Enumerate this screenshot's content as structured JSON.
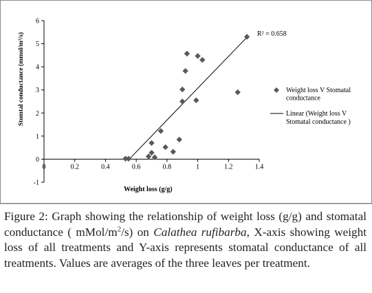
{
  "chart_data": {
    "type": "scatter",
    "xlabel": "Weight loss (g/g)",
    "ylabel": "Stomtal conductance (mmol/m²/s)",
    "xlim": [
      0,
      1.4
    ],
    "ylim": [
      -1,
      6
    ],
    "x_ticks": [
      "0",
      "0.2",
      "0.4",
      "0.6",
      "0.8",
      "1",
      "1.2",
      "1.4"
    ],
    "x_tick_values": [
      0,
      0.2,
      0.4,
      0.6,
      0.8,
      1.0,
      1.2,
      1.4
    ],
    "y_ticks": [
      "-1",
      "0",
      "1",
      "2",
      "3",
      "4",
      "5",
      "6"
    ],
    "y_tick_values": [
      -1,
      0,
      1,
      2,
      3,
      4,
      5,
      6
    ],
    "grid": false,
    "legend_position": "right",
    "marker_color": "#595959",
    "line_color": "#000000",
    "series": [
      {
        "name": "Weight loss V Stomatal conductance",
        "kind": "scatter",
        "marker": "diamond",
        "x": [
          0.53,
          0.55,
          0.68,
          0.7,
          0.7,
          0.72,
          0.76,
          0.79,
          0.84,
          0.88,
          0.9,
          0.9,
          0.92,
          0.93,
          0.99,
          1.0,
          1.03,
          1.26,
          1.32
        ],
        "y": [
          0.02,
          0.02,
          0.12,
          0.7,
          0.28,
          0.08,
          1.22,
          0.52,
          0.32,
          0.85,
          2.5,
          3.02,
          3.82,
          4.57,
          2.55,
          4.47,
          4.3,
          2.9,
          5.3
        ]
      },
      {
        "name": "Linear (Weight loss V Stomatal conductance )",
        "kind": "line",
        "x": [
          0.55,
          1.32
        ],
        "y": [
          -0.03,
          5.28
        ]
      }
    ],
    "annotation": "R² = 0.658"
  },
  "figure": {
    "label": "Figure 2:",
    "caption_part1": " Graph showing the relationship of weight loss (g/g) and stomatal conductance ( mMol/m",
    "caption_sup": "2",
    "caption_part2": "/s) on ",
    "caption_species": "Calathea rufibarba",
    "caption_part3": ", X-axis showing weight loss of all treatments and Y-axis represents stomatal conductance of all treatments. Values are averages of the three leaves per treatment."
  }
}
